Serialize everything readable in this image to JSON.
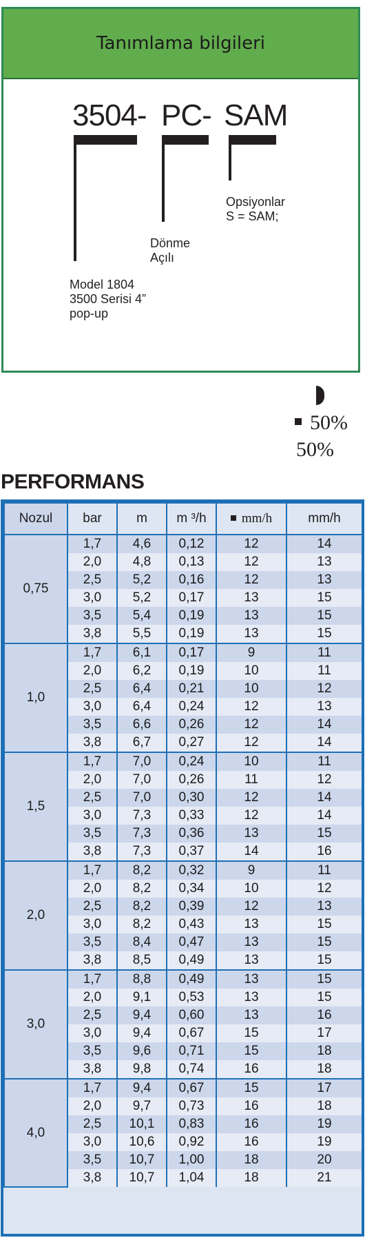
{
  "identification": {
    "title": "Tanımlama bilgileri",
    "code_parts": [
      "3504-",
      "PC-",
      "SAM"
    ],
    "model_lines": [
      "Model 1804",
      "3500 Serisi 4”",
      "pop-up"
    ],
    "rotation_lines": [
      "Dönme",
      "Açılı"
    ],
    "options_lines": [
      "Opsiyonlar",
      "S = SAM;"
    ]
  },
  "legend": {
    "icon": "half-circle-icon",
    "square_value": "50%",
    "plain_value": "50%"
  },
  "performance": {
    "title": "PERFORMANS",
    "headers": [
      "Nozul",
      "bar",
      "m",
      "m ³/h",
      "mm/h",
      "mm/h"
    ],
    "groups": [
      {
        "nozzle": "0,75",
        "rows": [
          [
            "1,7",
            "4,6",
            "0,12",
            "12",
            "14"
          ],
          [
            "2,0",
            "4,8",
            "0,13",
            "12",
            "13"
          ],
          [
            "2,5",
            "5,2",
            "0,16",
            "12",
            "13"
          ],
          [
            "3,0",
            "5,2",
            "0,17",
            "13",
            "15"
          ],
          [
            "3,5",
            "5,4",
            "0,19",
            "13",
            "15"
          ],
          [
            "3,8",
            "5,5",
            "0,19",
            "13",
            "15"
          ]
        ]
      },
      {
        "nozzle": "1,0",
        "rows": [
          [
            "1,7",
            "6,1",
            "0,17",
            "9",
            "11"
          ],
          [
            "2,0",
            "6,2",
            "0,19",
            "10",
            "11"
          ],
          [
            "2,5",
            "6,4",
            "0,21",
            "10",
            "12"
          ],
          [
            "3,0",
            "6,4",
            "0,24",
            "12",
            "13"
          ],
          [
            "3,5",
            "6,6",
            "0,26",
            "12",
            "14"
          ],
          [
            "3,8",
            "6,7",
            "0,27",
            "12",
            "14"
          ]
        ]
      },
      {
        "nozzle": "1,5",
        "rows": [
          [
            "1,7",
            "7,0",
            "0,24",
            "10",
            "11"
          ],
          [
            "2,0",
            "7,0",
            "0,26",
            "11",
            "12"
          ],
          [
            "2,5",
            "7,0",
            "0,30",
            "12",
            "14"
          ],
          [
            "3,0",
            "7,3",
            "0,33",
            "12",
            "14"
          ],
          [
            "3,5",
            "7,3",
            "0,36",
            "13",
            "15"
          ],
          [
            "3,8",
            "7,3",
            "0,37",
            "14",
            "16"
          ]
        ]
      },
      {
        "nozzle": "2,0",
        "rows": [
          [
            "1,7",
            "8,2",
            "0,32",
            "9",
            "11"
          ],
          [
            "2,0",
            "8,2",
            "0,34",
            "10",
            "12"
          ],
          [
            "2,5",
            "8,2",
            "0,39",
            "12",
            "13"
          ],
          [
            "3,0",
            "8,2",
            "0,43",
            "13",
            "15"
          ],
          [
            "3,5",
            "8,4",
            "0,47",
            "13",
            "15"
          ],
          [
            "3,8",
            "8,5",
            "0,49",
            "13",
            "15"
          ]
        ]
      },
      {
        "nozzle": "3,0",
        "rows": [
          [
            "1,7",
            "8,8",
            "0,49",
            "13",
            "15"
          ],
          [
            "2,0",
            "9,1",
            "0,53",
            "13",
            "15"
          ],
          [
            "2,5",
            "9,4",
            "0,60",
            "13",
            "16"
          ],
          [
            "3,0",
            "9,4",
            "0,67",
            "15",
            "17"
          ],
          [
            "3,5",
            "9,6",
            "0,71",
            "15",
            "18"
          ],
          [
            "3,8",
            "9,8",
            "0,74",
            "16",
            "18"
          ]
        ]
      },
      {
        "nozzle": "4,0",
        "rows": [
          [
            "1,7",
            "9,4",
            "0,67",
            "15",
            "17"
          ],
          [
            "2,0",
            "9,7",
            "0,73",
            "16",
            "18"
          ],
          [
            "2,5",
            "10,1",
            "0,83",
            "16",
            "19"
          ],
          [
            "3,0",
            "10,6",
            "0,92",
            "16",
            "19"
          ],
          [
            "3,5",
            "10,7",
            "1,00",
            "18",
            "20"
          ],
          [
            "3,8",
            "10,7",
            "1,04",
            "18",
            "21"
          ]
        ]
      }
    ]
  }
}
